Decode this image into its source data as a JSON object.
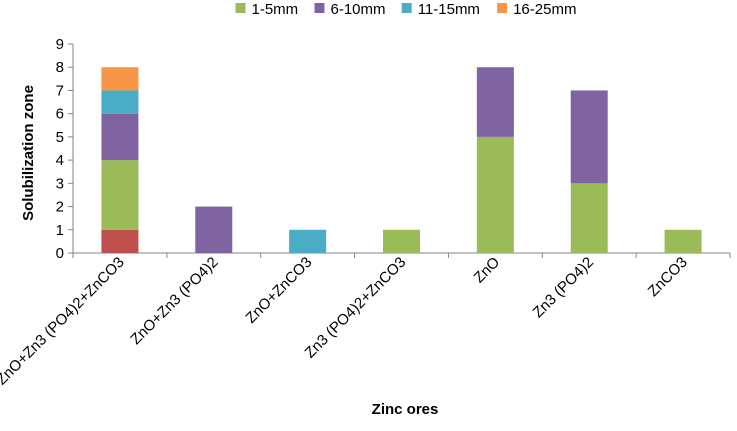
{
  "chart_data": {
    "type": "bar",
    "stacked": true,
    "xlabel": "Zinc ores",
    "ylabel": "Solubilization zone",
    "ylim": [
      0,
      9
    ],
    "yticks": [
      0,
      1,
      2,
      3,
      4,
      5,
      6,
      7,
      8,
      9
    ],
    "grid": false,
    "legend_position": "top",
    "categories": [
      "ZnO+Zn3 (PO4)2+ZnCO3",
      "ZnO+Zn3 (PO4)2",
      "ZnO+ZnCO3",
      "Zn3 (PO4)2+ZnCO3",
      "ZnO",
      "Zn3 (PO4)2",
      "ZnCO3"
    ],
    "series": [
      {
        "values": [
          1,
          0,
          0,
          0,
          0,
          0,
          0
        ],
        "color": "#C0504D"
      },
      {
        "name": "1-5mm",
        "values": [
          3,
          0,
          0,
          1,
          5,
          3,
          1
        ],
        "color": "#9BBB59"
      },
      {
        "name": "6-10mm",
        "values": [
          2,
          2,
          0,
          0,
          3,
          4,
          0
        ],
        "color": "#8064A2"
      },
      {
        "name": "11-15mm",
        "values": [
          1,
          0,
          1,
          0,
          0,
          0,
          0
        ],
        "color": "#4BACC6"
      },
      {
        "name": "16-25mm",
        "values": [
          1,
          0,
          0,
          0,
          0,
          0,
          0
        ],
        "color": "#F79646"
      }
    ]
  }
}
